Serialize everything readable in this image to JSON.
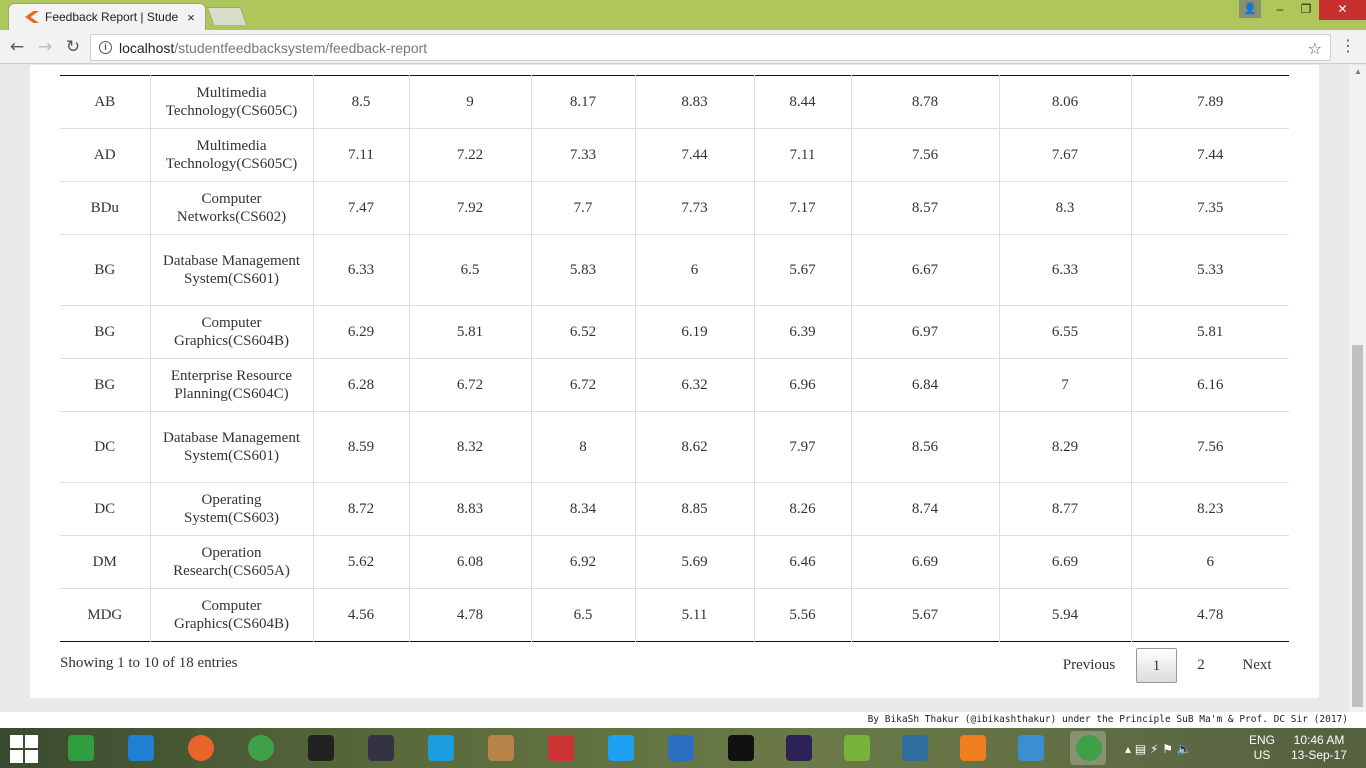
{
  "browser": {
    "tab_title": "Feedback Report | Stude",
    "tab_close": "×",
    "url_host": "localhost",
    "url_path": "/studentfeedbacksystem/feedback-report",
    "back_icon": "arrow-left-icon",
    "forward_icon": "arrow-right-icon",
    "reload_icon": "reload-icon",
    "star_icon": "star-icon"
  },
  "table": {
    "rows": [
      [
        "AB",
        "Multimedia Technology(CS605C)",
        "8.5",
        "9",
        "8.17",
        "8.83",
        "8.44",
        "8.78",
        "8.06",
        "7.89"
      ],
      [
        "AD",
        "Multimedia Technology(CS605C)",
        "7.11",
        "7.22",
        "7.33",
        "7.44",
        "7.11",
        "7.56",
        "7.67",
        "7.44"
      ],
      [
        "BDu",
        "Computer Networks(CS602)",
        "7.47",
        "7.92",
        "7.7",
        "7.73",
        "7.17",
        "8.57",
        "8.3",
        "7.35"
      ],
      [
        "BG",
        "Database Management System(CS601)",
        "6.33",
        "6.5",
        "5.83",
        "6",
        "5.67",
        "6.67",
        "6.33",
        "5.33"
      ],
      [
        "BG",
        "Computer Graphics(CS604B)",
        "6.29",
        "5.81",
        "6.52",
        "6.19",
        "6.39",
        "6.97",
        "6.55",
        "5.81"
      ],
      [
        "BG",
        "Enterprise Resource Planning(CS604C)",
        "6.28",
        "6.72",
        "6.72",
        "6.32",
        "6.96",
        "6.84",
        "7",
        "6.16"
      ],
      [
        "DC",
        "Database Management System(CS601)",
        "8.59",
        "8.32",
        "8",
        "8.62",
        "7.97",
        "8.56",
        "8.29",
        "7.56"
      ],
      [
        "DC",
        "Operating System(CS603)",
        "8.72",
        "8.83",
        "8.34",
        "8.85",
        "8.26",
        "8.74",
        "8.77",
        "8.23"
      ],
      [
        "DM",
        "Operation Research(CS605A)",
        "5.62",
        "6.08",
        "6.92",
        "5.69",
        "6.46",
        "6.69",
        "6.69",
        "6"
      ],
      [
        "MDG",
        "Computer Graphics(CS604B)",
        "4.56",
        "4.78",
        "6.5",
        "5.11",
        "5.56",
        "5.67",
        "5.94",
        "4.78"
      ]
    ]
  },
  "info_text": "Showing 1 to 10 of 18 entries",
  "pagination": {
    "previous": "Previous",
    "pages": [
      "1",
      "2"
    ],
    "next": "Next",
    "active": "1"
  },
  "footer": "By BikaSh Thakur (@ibikashthakur) under the Principle SuB Ma'm & Prof. DC Sir (2017)",
  "taskbar": {
    "lang": "ENG",
    "region": "US",
    "time": "10:46 AM",
    "date": "13-Sep-17",
    "apps": [
      "file-explorer-icon",
      "internet-explorer-icon",
      "firefox-icon",
      "chrome-icon",
      "app-icon",
      "app-icon",
      "skype-icon",
      "app-icon",
      "app-icon",
      "twitter-icon",
      "visual-studio-icon",
      "intellij-icon",
      "eclipse-icon",
      "notepad-icon",
      "mysql-icon",
      "xampp-icon",
      "app-icon",
      "chrome-icon"
    ]
  }
}
